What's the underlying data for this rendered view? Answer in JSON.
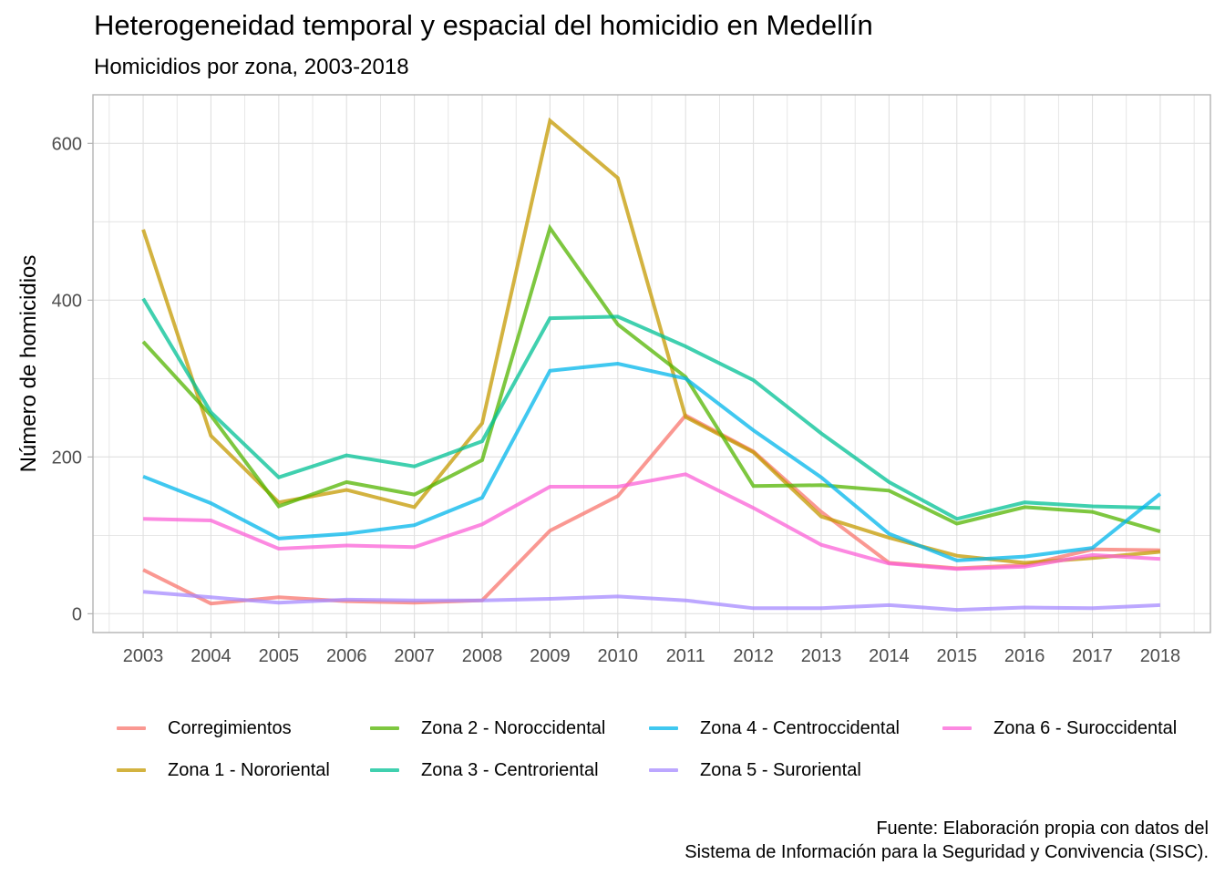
{
  "chart_data": {
    "type": "line",
    "title": "Heterogeneidad temporal y espacial del homicidio en Medellín",
    "subtitle": "Homicidios por zona, 2003-2018",
    "caption_lines": [
      "Fuente: Elaboración propia con datos del",
      "Sistema de Información para la Seguridad y Convivencia (SISC)."
    ],
    "xlabel": "",
    "ylabel": "Número de homicidios",
    "x": [
      2003,
      2004,
      2005,
      2006,
      2007,
      2008,
      2009,
      2010,
      2011,
      2012,
      2013,
      2014,
      2015,
      2016,
      2017,
      2018
    ],
    "x_tick_labels": [
      "2003",
      "2004",
      "2005",
      "2006",
      "2007",
      "2008",
      "2009",
      "2010",
      "2011",
      "2012",
      "2013",
      "2014",
      "2015",
      "2016",
      "2017",
      "2018"
    ],
    "y_ticks": [
      0,
      200,
      400,
      600
    ],
    "y_tick_labels": [
      "0",
      "200",
      "400",
      "600"
    ],
    "xlim": [
      2002.26,
      2018.74
    ],
    "ylim": [
      -24,
      662
    ],
    "grid": true,
    "legend_position": "bottom",
    "series": [
      {
        "name": "Corregimientos",
        "color": "#F8766D",
        "values": [
          56,
          13,
          21,
          16,
          14,
          17,
          106,
          150,
          253,
          207,
          130,
          65,
          58,
          62,
          82,
          81
        ]
      },
      {
        "name": "Zona 1 - Nororiental",
        "color": "#C49A00",
        "values": [
          490,
          227,
          142,
          158,
          136,
          243,
          629,
          556,
          251,
          206,
          124,
          97,
          74,
          65,
          71,
          79
        ]
      },
      {
        "name": "Zona 2 - Noroccidental",
        "color": "#53B400",
        "values": [
          347,
          253,
          137,
          168,
          152,
          196,
          492,
          369,
          302,
          163,
          164,
          157,
          115,
          136,
          130,
          105
        ]
      },
      {
        "name": "Zona 3 - Centroriental",
        "color": "#00C094",
        "values": [
          402,
          257,
          174,
          202,
          188,
          220,
          377,
          379,
          341,
          298,
          230,
          168,
          121,
          142,
          137,
          135
        ]
      },
      {
        "name": "Zona 4 - Centroccidental",
        "color": "#00B6EB",
        "values": [
          175,
          141,
          96,
          102,
          113,
          148,
          310,
          319,
          300,
          234,
          174,
          102,
          68,
          73,
          84,
          153
        ]
      },
      {
        "name": "Zona 5 - Suroriental",
        "color": "#A58AFF",
        "values": [
          28,
          21,
          14,
          18,
          17,
          17,
          19,
          22,
          17,
          7,
          7,
          11,
          5,
          8,
          7,
          11
        ]
      },
      {
        "name": "Zona 6 - Suroccidental",
        "color": "#FB61D7",
        "values": [
          121,
          119,
          83,
          87,
          85,
          114,
          162,
          162,
          178,
          135,
          88,
          64,
          57,
          60,
          75,
          70
        ]
      }
    ]
  }
}
